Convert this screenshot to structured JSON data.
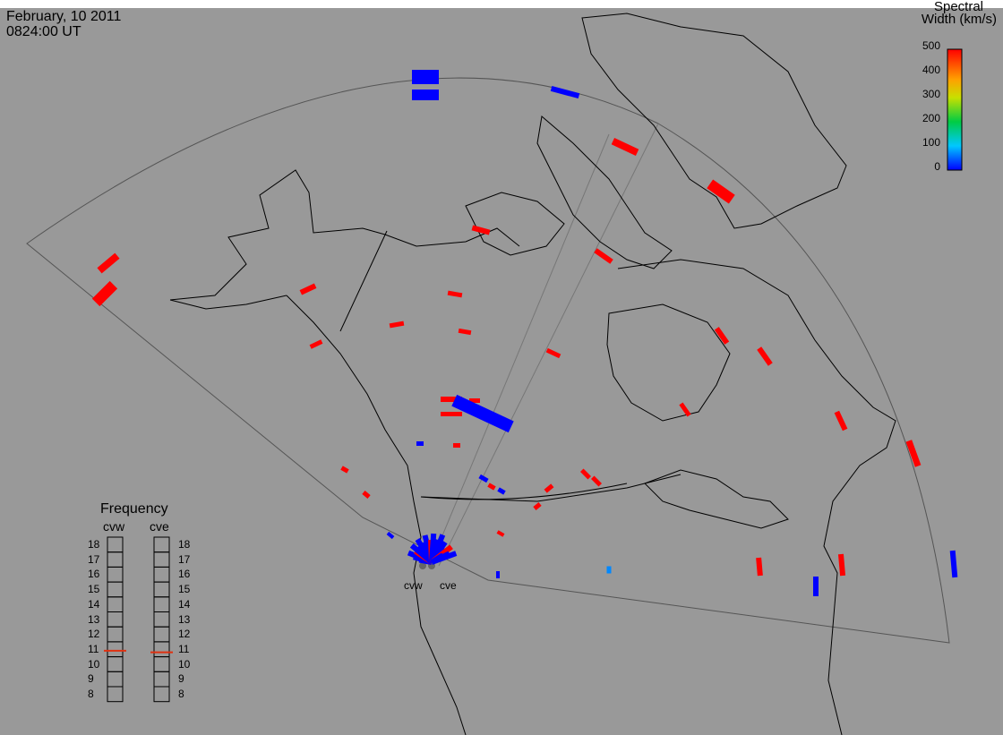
{
  "header": {
    "date": "February, 10 2011",
    "time": "0824:00 UT"
  },
  "colorbar": {
    "title_line1": "Spectral",
    "title_line2": "Width (km/s)",
    "ticks": [
      "500",
      "400",
      "300",
      "200",
      "100",
      "0"
    ],
    "range": [
      0,
      500
    ]
  },
  "radars": [
    {
      "label": "cvw"
    },
    {
      "label": "cve"
    }
  ],
  "frequency_panel": {
    "title": "Frequency",
    "columns": [
      "cvw",
      "cve"
    ],
    "levels": [
      "18",
      "17",
      "16",
      "15",
      "14",
      "13",
      "12",
      "11",
      "10",
      "9",
      "8"
    ],
    "marker_values": [
      10.9,
      10.8
    ]
  },
  "colors": {
    "background": "#999999",
    "land_line": "#000000",
    "fov_line": "#555555",
    "low_width": "#0000ff",
    "high_width": "#ff0000",
    "frequency_marker": "#e03010"
  }
}
